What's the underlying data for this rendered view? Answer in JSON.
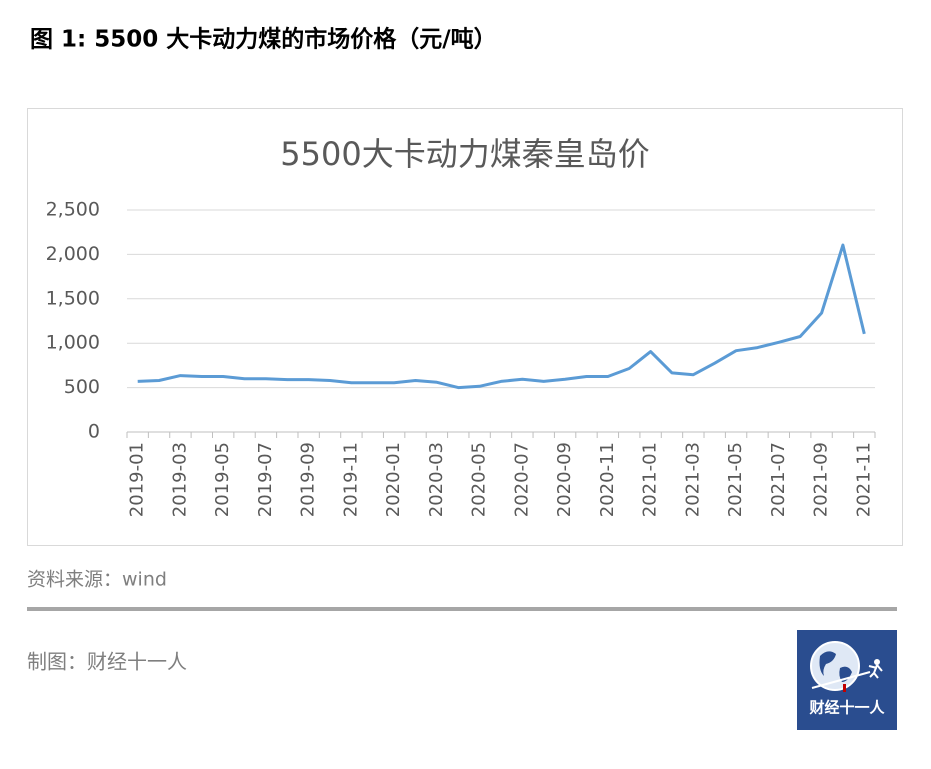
{
  "figure_title": "图 1: 5500 大卡动力煤的市场价格（元/吨）",
  "chart_data": {
    "type": "line",
    "title": "5500大卡动力煤秦皇岛价",
    "categories": [
      "2019-01",
      null,
      "2019-03",
      null,
      "2019-05",
      null,
      "2019-07",
      null,
      "2019-09",
      null,
      "2019-11",
      null,
      "2020-01",
      null,
      "2020-03",
      null,
      "2020-05",
      null,
      "2020-07",
      null,
      "2020-09",
      null,
      "2020-11",
      null,
      "2021-01",
      null,
      "2021-03",
      null,
      "2021-05",
      null,
      "2021-07",
      null,
      "2021-09",
      null,
      "2021-11"
    ],
    "series": [
      {
        "name": "5500大卡动力煤秦皇岛价",
        "color": "#5b9bd5",
        "values": [
          570,
          580,
          635,
          625,
          625,
          600,
          600,
          590,
          590,
          580,
          555,
          555,
          555,
          580,
          560,
          500,
          515,
          570,
          595,
          570,
          595,
          625,
          625,
          715,
          905,
          665,
          645,
          775,
          915,
          950,
          1010,
          1075,
          1340,
          2105,
          1105
        ]
      }
    ],
    "ylim": [
      0,
      2500
    ],
    "yticks": [
      0,
      500,
      {
        "value": 1000,
        "label": "1,000"
      },
      {
        "value": 1500,
        "label": "1,500"
      },
      {
        "value": 2000,
        "label": "2,000"
      },
      {
        "value": 2500,
        "label": "2,500"
      }
    ],
    "grid": true
  },
  "source": "资料来源：wind",
  "credit": "制图：财经十一人",
  "logo_text": "财经十一人"
}
